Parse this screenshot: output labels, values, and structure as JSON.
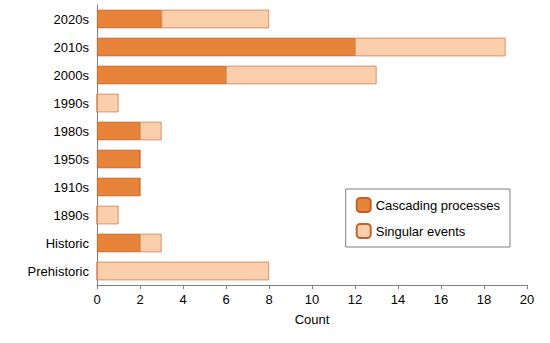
{
  "chart_data": {
    "type": "bar",
    "orientation": "horizontal",
    "stacked": true,
    "categories": [
      "2020s",
      "2010s",
      "2000s",
      "1990s",
      "1980s",
      "1950s",
      "1910s",
      "1890s",
      "Historic",
      "Prehistoric"
    ],
    "series": [
      {
        "name": "Cascading processes",
        "color": "#e8833a",
        "values": [
          3,
          12,
          6,
          0,
          2,
          2,
          2,
          0,
          2,
          0
        ]
      },
      {
        "name": "Singular events",
        "color": "#fbcfac",
        "values": [
          5,
          7,
          7,
          1,
          1,
          0,
          0,
          1,
          1,
          8
        ]
      }
    ],
    "xlabel": "Count",
    "xlim": [
      0,
      20
    ],
    "xticks": [
      0,
      2,
      4,
      6,
      8,
      10,
      12,
      14,
      16,
      18,
      20
    ],
    "grid": false,
    "legend": "lower right"
  }
}
